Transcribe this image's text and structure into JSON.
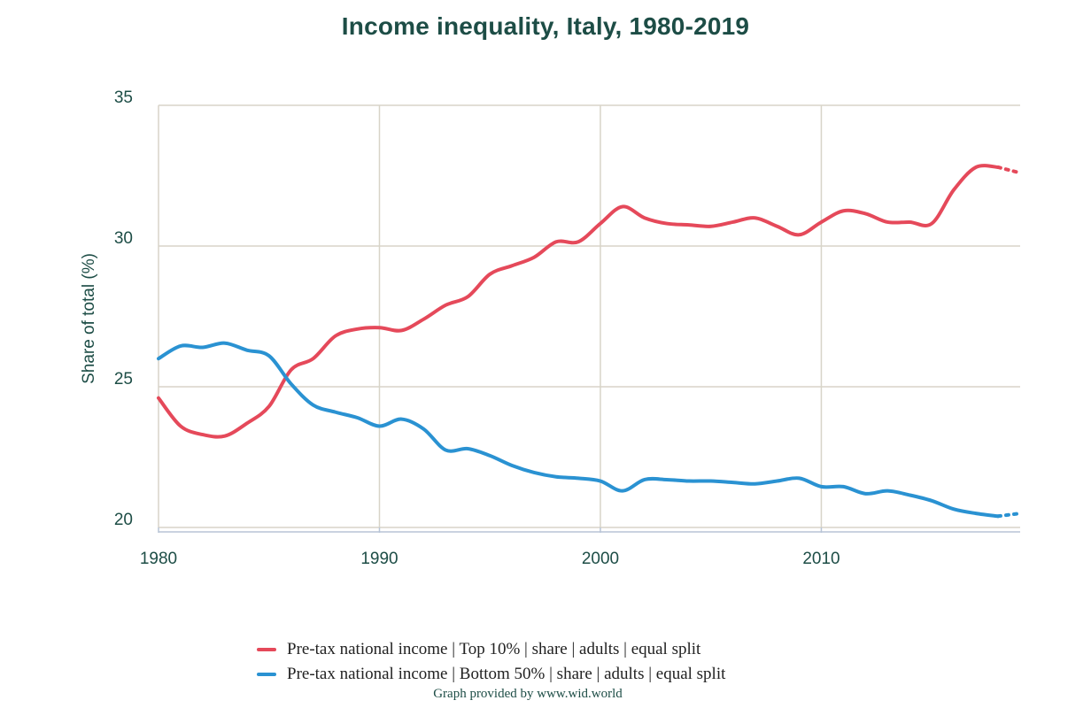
{
  "title": "Income inequality, Italy, 1980-2019",
  "credit": "Graph provided by www.wid.world",
  "colors": {
    "top10": "#e5495a",
    "bottom50": "#2a92d2",
    "grid": "#d8d4c8",
    "text": "#1d4d46"
  },
  "chart_data": {
    "type": "line",
    "ylabel": "Share of total (%)",
    "ylim": [
      20,
      35
    ],
    "xlim": [
      1980,
      2019
    ],
    "yticks": [
      20,
      25,
      30,
      35
    ],
    "xticks": [
      1980,
      1990,
      2000,
      2010
    ],
    "grid": true,
    "legend_position": "bottom",
    "x": [
      1980,
      1981,
      1982,
      1983,
      1984,
      1985,
      1986,
      1987,
      1988,
      1989,
      1990,
      1991,
      1992,
      1993,
      1994,
      1995,
      1996,
      1997,
      1998,
      1999,
      2000,
      2001,
      2002,
      2003,
      2004,
      2005,
      2006,
      2007,
      2008,
      2009,
      2010,
      2011,
      2012,
      2013,
      2014,
      2015,
      2016,
      2017,
      2018,
      2019
    ],
    "series": [
      {
        "name": "Pre-tax national income | Top 10% | share | adults | equal split",
        "color": "#e5495a",
        "values": [
          24.6,
          23.6,
          23.3,
          23.25,
          23.7,
          24.3,
          25.6,
          26.0,
          26.8,
          27.05,
          27.1,
          27.0,
          27.4,
          27.9,
          28.2,
          29.0,
          29.3,
          29.6,
          30.15,
          30.15,
          30.8,
          31.4,
          31.0,
          30.8,
          30.75,
          30.7,
          30.85,
          31.0,
          30.7,
          30.4,
          30.85,
          31.25,
          31.15,
          30.85,
          30.85,
          30.8,
          32.0,
          32.8,
          32.8,
          32.6
        ],
        "dashed_from_index": 38
      },
      {
        "name": "Pre-tax national income | Bottom 50% | share | adults | equal split",
        "color": "#2a92d2",
        "values": [
          26.0,
          26.45,
          26.4,
          26.55,
          26.3,
          26.1,
          25.1,
          24.35,
          24.1,
          23.9,
          23.6,
          23.85,
          23.5,
          22.75,
          22.8,
          22.55,
          22.2,
          21.95,
          21.8,
          21.75,
          21.65,
          21.3,
          21.7,
          21.7,
          21.65,
          21.65,
          21.6,
          21.55,
          21.65,
          21.75,
          21.45,
          21.45,
          21.2,
          21.3,
          21.15,
          20.95,
          20.65,
          20.5,
          20.4,
          20.5
        ],
        "dashed_from_index": 38
      }
    ]
  }
}
